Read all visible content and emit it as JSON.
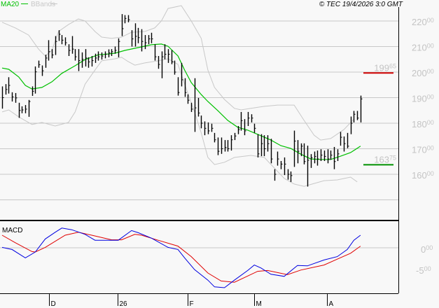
{
  "header": {
    "legend_ma": "MA20",
    "legend_bb": "BBands",
    "copyright": "© TEC 19/4/2026 3:0 GMT"
  },
  "colors": {
    "background": "#f8f8f8",
    "grid": "#c8c8c8",
    "bars": "#000000",
    "ma20": "#00c000",
    "bbands": "#c8c8c8",
    "macd": "#0000e0",
    "signal": "#e00000",
    "resistance": "#d00000",
    "support": "#009000"
  },
  "chart_data": [
    {
      "type": "ohlc",
      "panel": "price",
      "ylim": [
        142,
        226
      ],
      "y_ticks": [
        {
          "value": 220,
          "int": "220",
          "dec": "00"
        },
        {
          "value": 210,
          "int": "210",
          "dec": "00"
        },
        {
          "value": 200,
          "int": "200",
          "dec": "00"
        },
        {
          "value": 190,
          "int": "190",
          "dec": "00"
        },
        {
          "value": 180,
          "int": "180",
          "dec": "00"
        },
        {
          "value": 170,
          "int": "170",
          "dec": "00"
        },
        {
          "value": 160,
          "int": "160",
          "dec": "00"
        }
      ],
      "extra_gridlines": [
        150
      ],
      "grid": true,
      "bars_hlc": [
        [
          194.4,
          185.7,
          190.0
        ],
        [
          195.3,
          191.2,
          193.2
        ],
        [
          198.0,
          191.6,
          194.8
        ],
        [
          192.1,
          188.5,
          190.3
        ],
        [
          191.8,
          188.0,
          189.9
        ],
        [
          188.0,
          182.1,
          185.0
        ],
        [
          186.6,
          183.9,
          185.2
        ],
        [
          187.1,
          183.9,
          185.5
        ],
        [
          189.1,
          182.5,
          188.5
        ],
        [
          194.4,
          190.7,
          192.5
        ],
        [
          202.2,
          191.6,
          200.1
        ],
        [
          204.5,
          201.7,
          202.9
        ],
        [
          202.6,
          198.5,
          200.5
        ],
        [
          206.8,
          201.7,
          205.5
        ],
        [
          212.5,
          204.5,
          208.0
        ],
        [
          209.0,
          205.4,
          206.7
        ],
        [
          214.1,
          206.7,
          212.0
        ],
        [
          216.4,
          212.2,
          214.8
        ],
        [
          214.5,
          210.9,
          212.5
        ],
        [
          213.6,
          210.4,
          211.5
        ],
        [
          210.9,
          206.3,
          208.5
        ],
        [
          214.1,
          207.2,
          209.0
        ],
        [
          209.0,
          204.5,
          206.0
        ],
        [
          209.0,
          200.4,
          204.5
        ],
        [
          207.7,
          201.7,
          205.0
        ],
        [
          209.0,
          202.2,
          205.5
        ],
        [
          205.8,
          201.7,
          204.0
        ],
        [
          206.3,
          202.2,
          204.5
        ],
        [
          207.2,
          203.6,
          205.5
        ],
        [
          208.1,
          204.5,
          206.0
        ],
        [
          207.7,
          204.9,
          206.3
        ],
        [
          208.1,
          205.4,
          207.0
        ],
        [
          208.9,
          205.8,
          207.5
        ],
        [
          209.0,
          206.3,
          208.0
        ],
        [
          210.0,
          207.2,
          208.5
        ],
        [
          213.2,
          205.8,
          212.0
        ],
        [
          222.7,
          214.1,
          217.0
        ],
        [
          222.3,
          219.1,
          221.0
        ],
        [
          222.3,
          219.5,
          220.5
        ],
        [
          216.4,
          210.0,
          213.0
        ],
        [
          219.1,
          210.0,
          214.0
        ],
        [
          217.3,
          211.3,
          213.5
        ],
        [
          216.8,
          208.1,
          212.0
        ],
        [
          214.5,
          209.0,
          211.5
        ],
        [
          214.5,
          210.9,
          213.0
        ],
        [
          215.4,
          211.3,
          213.0
        ],
        [
          210.9,
          204.5,
          206.0
        ],
        [
          206.3,
          201.3,
          203.0
        ],
        [
          208.1,
          197.6,
          206.0
        ],
        [
          210.9,
          205.0,
          207.0
        ],
        [
          209.0,
          203.6,
          207.0
        ],
        [
          208.6,
          203.1,
          204.0
        ],
        [
          204.5,
          199.0,
          200.0
        ],
        [
          198.0,
          190.8,
          192.0
        ],
        [
          203.6,
          194.4,
          197.0
        ],
        [
          197.6,
          190.3,
          192.0
        ],
        [
          191.3,
          187.6,
          189.0
        ],
        [
          188.0,
          184.4,
          185.5
        ],
        [
          197.6,
          176.6,
          186.0
        ],
        [
          189.9,
          182.6,
          184.0
        ],
        [
          183.0,
          178.0,
          180.0
        ],
        [
          180.7,
          175.3,
          178.0
        ],
        [
          180.3,
          175.7,
          177.0
        ],
        [
          179.8,
          176.6,
          178.0
        ],
        [
          176.2,
          172.5,
          173.5
        ],
        [
          174.4,
          167.5,
          169.0
        ],
        [
          174.4,
          168.0,
          170.0
        ],
        [
          173.4,
          168.9,
          170.5
        ],
        [
          173.4,
          168.9,
          170.0
        ],
        [
          175.3,
          169.3,
          173.5
        ],
        [
          176.2,
          173.4,
          175.0
        ],
        [
          178.9,
          175.7,
          177.5
        ],
        [
          184.4,
          177.1,
          181.0
        ],
        [
          181.6,
          175.3,
          177.0
        ],
        [
          184.4,
          178.9,
          182.0
        ],
        [
          183.5,
          180.3,
          182.0
        ],
        [
          179.8,
          176.2,
          178.0
        ],
        [
          175.7,
          166.6,
          168.0
        ],
        [
          175.7,
          167.1,
          172.0
        ],
        [
          175.3,
          167.1,
          170.0
        ],
        [
          175.3,
          168.9,
          172.0
        ],
        [
          173.9,
          164.3,
          166.0
        ],
        [
          162.0,
          157.5,
          160.0
        ],
        [
          168.9,
          163.4,
          166.0
        ],
        [
          165.2,
          162.0,
          164.0
        ],
        [
          166.6,
          159.7,
          164.0
        ],
        [
          162.0,
          157.9,
          160.0
        ],
        [
          161.1,
          157.0,
          159.5
        ],
        [
          177.1,
          162.9,
          173.0
        ],
        [
          173.4,
          164.3,
          169.0
        ],
        [
          172.1,
          167.1,
          171.0
        ],
        [
          172.1,
          163.9,
          165.0
        ],
        [
          171.2,
          155.2,
          165.5
        ],
        [
          167.9,
          162.5,
          166.5
        ],
        [
          168.9,
          164.3,
          167.0
        ],
        [
          169.3,
          163.4,
          166.0
        ],
        [
          169.8,
          165.2,
          167.5
        ],
        [
          169.3,
          165.2,
          167.0
        ],
        [
          169.8,
          164.3,
          166.0
        ],
        [
          169.3,
          165.7,
          167.5
        ],
        [
          170.7,
          162.0,
          165.0
        ],
        [
          169.8,
          165.2,
          168.0
        ],
        [
          176.6,
          171.2,
          174.5
        ],
        [
          174.8,
          168.9,
          172.0
        ],
        [
          176.2,
          170.2,
          171.0
        ],
        [
          182.6,
          175.7,
          180.0
        ],
        [
          184.8,
          180.3,
          183.5
        ],
        [
          184.8,
          181.2,
          182.0
        ],
        [
          190.8,
          180.3,
          189.5
        ]
      ],
      "ma20": [
        [
          0,
          201.6
        ],
        [
          2,
          201.1
        ],
        [
          5,
          198.1
        ],
        [
          7,
          194.8
        ],
        [
          9,
          193.4
        ],
        [
          12,
          194.0
        ],
        [
          15,
          196.2
        ],
        [
          18,
          199.5
        ],
        [
          22,
          202.5
        ],
        [
          25,
          204.9
        ],
        [
          29,
          206.8
        ],
        [
          32,
          207.1
        ],
        [
          34,
          207.4
        ],
        [
          37,
          208.5
        ],
        [
          41,
          209.6
        ],
        [
          45,
          210.7
        ],
        [
          48,
          211.0
        ],
        [
          50,
          210.1
        ],
        [
          53,
          206.3
        ],
        [
          55,
          200.8
        ],
        [
          57,
          195.9
        ],
        [
          60,
          191.2
        ],
        [
          62,
          188.5
        ],
        [
          65,
          184.9
        ],
        [
          68,
          181.1
        ],
        [
          71,
          178.4
        ],
        [
          74,
          177.3
        ],
        [
          78,
          175.1
        ],
        [
          81,
          173.4
        ],
        [
          84,
          171.2
        ],
        [
          87,
          170.1
        ],
        [
          90,
          167.9
        ],
        [
          93,
          166.0
        ],
        [
          96,
          165.8
        ],
        [
          99,
          165.8
        ],
        [
          102,
          167.1
        ],
        [
          105,
          168.5
        ],
        [
          108,
          171.0
        ]
      ],
      "bb_upper": [
        [
          0,
          219.5
        ],
        [
          4,
          217.3
        ],
        [
          8,
          214.5
        ],
        [
          11,
          209.0
        ],
        [
          13,
          206.3
        ],
        [
          15,
          208.5
        ],
        [
          17,
          215.9
        ],
        [
          20,
          218.6
        ],
        [
          23,
          220.8
        ],
        [
          25,
          220.0
        ],
        [
          28,
          215.9
        ],
        [
          30,
          213.7
        ],
        [
          33,
          213.2
        ],
        [
          36,
          213.7
        ],
        [
          39,
          215.6
        ],
        [
          43,
          215.9
        ],
        [
          46,
          217.3
        ],
        [
          48,
          220.0
        ],
        [
          50,
          224.9
        ],
        [
          54,
          226.0
        ],
        [
          57,
          220.0
        ],
        [
          60,
          213.2
        ],
        [
          62,
          200.8
        ],
        [
          64,
          194.0
        ],
        [
          67,
          189.3
        ],
        [
          70,
          185.8
        ],
        [
          72,
          185.2
        ],
        [
          75,
          185.8
        ],
        [
          79,
          186.6
        ],
        [
          83,
          187.1
        ],
        [
          88,
          187.1
        ],
        [
          91,
          181.1
        ],
        [
          94,
          175.3
        ],
        [
          96,
          173.4
        ],
        [
          99,
          174.0
        ],
        [
          103,
          177.5
        ],
        [
          106,
          181.6
        ]
      ],
      "bb_lower": [
        [
          0,
          184.4
        ],
        [
          2,
          185.2
        ],
        [
          5,
          182.5
        ],
        [
          9,
          179.5
        ],
        [
          12,
          180.3
        ],
        [
          16,
          178.9
        ],
        [
          20,
          180.3
        ],
        [
          22,
          184.4
        ],
        [
          25,
          195.3
        ],
        [
          28,
          200.8
        ],
        [
          30,
          204.4
        ],
        [
          34,
          205.2
        ],
        [
          36,
          205.8
        ],
        [
          38,
          204.1
        ],
        [
          40,
          202.7
        ],
        [
          43,
          203.6
        ],
        [
          47,
          204.4
        ],
        [
          50,
          205.2
        ],
        [
          53,
          203.0
        ],
        [
          55,
          195.3
        ],
        [
          58,
          184.4
        ],
        [
          60,
          176.2
        ],
        [
          62,
          166.6
        ],
        [
          64,
          163.8
        ],
        [
          67,
          164.7
        ],
        [
          70,
          166.6
        ],
        [
          75,
          167.4
        ],
        [
          79,
          166.6
        ],
        [
          82,
          162.5
        ],
        [
          85,
          158.4
        ],
        [
          88,
          156.2
        ],
        [
          91,
          155.3
        ],
        [
          94,
          156.4
        ],
        [
          97,
          157.5
        ],
        [
          101,
          157.8
        ],
        [
          105,
          158.9
        ],
        [
          107,
          157.0
        ]
      ],
      "levels": [
        {
          "value": 199.65,
          "int": "199",
          "dec": "65",
          "color": "#d00000"
        },
        {
          "value": 163.75,
          "int": "163",
          "dec": "75",
          "color": "#009000"
        }
      ]
    },
    {
      "type": "line",
      "panel": "macd",
      "title": "MACD",
      "ylim": [
        -10.7,
        6.3
      ],
      "y_ticks": [
        {
          "value": 0,
          "int": "0",
          "dec": "00"
        },
        {
          "value": -5,
          "int": "-5",
          "dec": "00"
        }
      ],
      "series": [
        {
          "key": "macd",
          "values": [
            [
              0,
              0.1
            ],
            [
              3,
              -0.4
            ],
            [
              7,
              -2.4
            ],
            [
              10,
              -1.0
            ],
            [
              13,
              2.1
            ],
            [
              16,
              3.7
            ],
            [
              18,
              4.7
            ],
            [
              21,
              4.3
            ],
            [
              25,
              3.2
            ],
            [
              28,
              1.8
            ],
            [
              35,
              1.8
            ],
            [
              39,
              4.1
            ],
            [
              41,
              3.6
            ],
            [
              45,
              2.3
            ],
            [
              50,
              0.1
            ],
            [
              53,
              -0.4
            ],
            [
              55,
              -2.4
            ],
            [
              58,
              -5.2
            ],
            [
              62,
              -7.7
            ],
            [
              64,
              -9.3
            ],
            [
              67,
              -9.5
            ],
            [
              70,
              -7.7
            ],
            [
              74,
              -5.4
            ],
            [
              76,
              -4.1
            ],
            [
              78,
              -4.8
            ],
            [
              81,
              -6.3
            ],
            [
              85,
              -6.8
            ],
            [
              89,
              -4.2
            ],
            [
              92,
              -4.3
            ],
            [
              97,
              -2.9
            ],
            [
              101,
              -2.1
            ],
            [
              104,
              -0.4
            ],
            [
              106,
              1.8
            ],
            [
              108,
              3.0
            ]
          ]
        },
        {
          "key": "signal",
          "values": [
            [
              0,
              3.0
            ],
            [
              4,
              1.2
            ],
            [
              9,
              -0.9
            ],
            [
              10,
              -1.0
            ],
            [
              13,
              0.1
            ],
            [
              19,
              3.0
            ],
            [
              23,
              3.7
            ],
            [
              27,
              3.0
            ],
            [
              33,
              1.9
            ],
            [
              36,
              1.9
            ],
            [
              40,
              3.2
            ],
            [
              42,
              3.0
            ],
            [
              47,
              1.8
            ],
            [
              53,
              0.4
            ],
            [
              57,
              -2.1
            ],
            [
              62,
              -6.0
            ],
            [
              66,
              -7.9
            ],
            [
              70,
              -8.2
            ],
            [
              73,
              -7.1
            ],
            [
              77,
              -5.6
            ],
            [
              80,
              -5.4
            ],
            [
              86,
              -6.4
            ],
            [
              90,
              -5.3
            ],
            [
              97,
              -4.1
            ],
            [
              101,
              -2.7
            ],
            [
              105,
              -1.3
            ],
            [
              108,
              0.4
            ]
          ]
        }
      ]
    }
  ],
  "x_axis": {
    "labels": [
      {
        "bar": 14.1,
        "text": "D"
      },
      {
        "bar": 34.8,
        "text": "26"
      },
      {
        "bar": 55.9,
        "text": "F"
      },
      {
        "bar": 76,
        "text": "M"
      },
      {
        "bar": 97.9,
        "text": "A"
      }
    ]
  }
}
